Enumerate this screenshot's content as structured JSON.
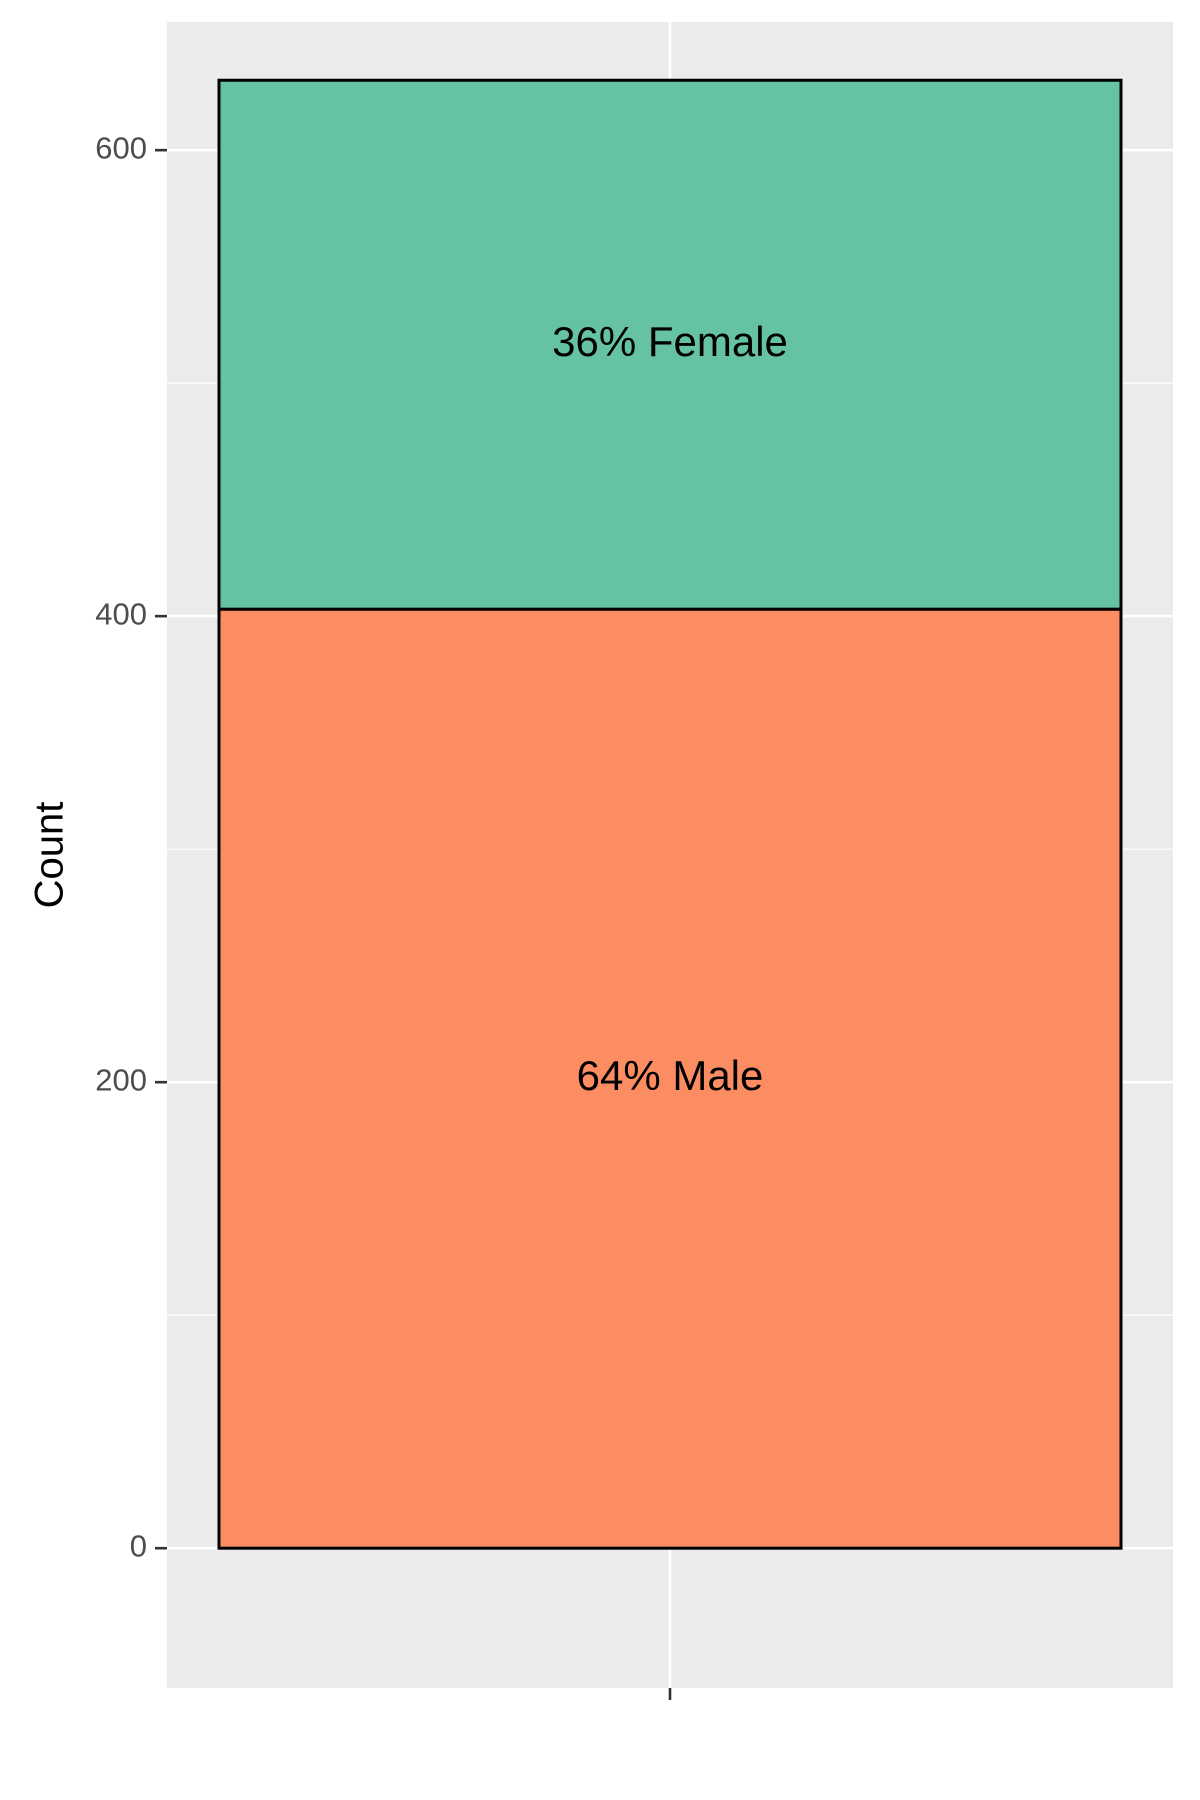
{
  "chart_data": {
    "type": "bar",
    "stacked": true,
    "orientation": "vertical",
    "categories": [
      ""
    ],
    "series": [
      {
        "name": "Male",
        "values": [
          403
        ],
        "color": "#FC8D62",
        "label": "64% Male"
      },
      {
        "name": "Female",
        "values": [
          227
        ],
        "color": "#66C2A5",
        "label": "36% Female"
      }
    ],
    "title": "",
    "xlabel": "",
    "ylabel": "Count",
    "ylim": [
      -60,
      655
    ],
    "yticks": [
      0,
      200,
      400,
      600
    ],
    "ytick_labels": [
      "0",
      "200",
      "400",
      "600"
    ],
    "grid": true,
    "legend": "none",
    "panel_background": "#EBEBEB",
    "bar_outline": "#000000"
  }
}
